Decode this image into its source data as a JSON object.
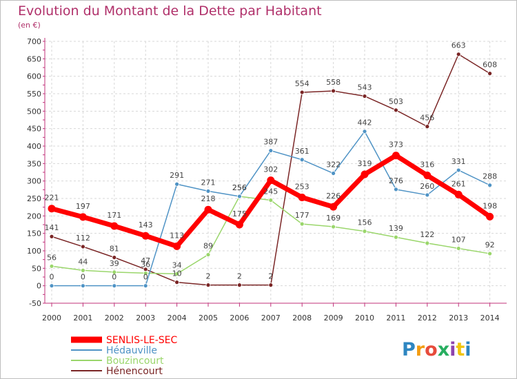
{
  "chart_data": {
    "type": "line",
    "title": "Evolution du Montant de la Dette par Habitant",
    "subtitle": "(en €)",
    "xlabel": "",
    "ylabel": "",
    "categories": [
      "2000",
      "2001",
      "2002",
      "2003",
      "2004",
      "2005",
      "2006",
      "2007",
      "2008",
      "2009",
      "2010",
      "2011",
      "2012",
      "2013",
      "2014"
    ],
    "ylim": [
      -50,
      700
    ],
    "yticks": [
      -50,
      0,
      50,
      100,
      150,
      200,
      250,
      300,
      350,
      400,
      450,
      500,
      550,
      600,
      650,
      700
    ],
    "grid": true,
    "legend": "bottom-left",
    "series": [
      {
        "name": "SENLIS-LE-SEC",
        "color": "#ff0000",
        "values": [
          221,
          197,
          171,
          143,
          113,
          218,
          175,
          302,
          253,
          226,
          319,
          373,
          316,
          261,
          198
        ]
      },
      {
        "name": "Hédauville",
        "color": "#4f93c5",
        "values": [
          0,
          0,
          0,
          0,
          291,
          271,
          256,
          387,
          361,
          322,
          442,
          276,
          260,
          331,
          288
        ]
      },
      {
        "name": "Bouzincourt",
        "color": "#9ad66b",
        "values": [
          56,
          44,
          39,
          36,
          34,
          89,
          256,
          245,
          177,
          169,
          156,
          139,
          122,
          107,
          92
        ]
      },
      {
        "name": "Hénencourt",
        "color": "#7a2525",
        "values": [
          141,
          112,
          81,
          47,
          10,
          2,
          2,
          2,
          554,
          558,
          543,
          503,
          456,
          663,
          608
        ]
      }
    ]
  },
  "logo": {
    "text": "Proxiti",
    "colors": [
      "#2e86c1",
      "#f39c12",
      "#e74c3c",
      "#27ae60",
      "#8e44ad",
      "#f1c40f",
      "#2e86c1"
    ]
  }
}
